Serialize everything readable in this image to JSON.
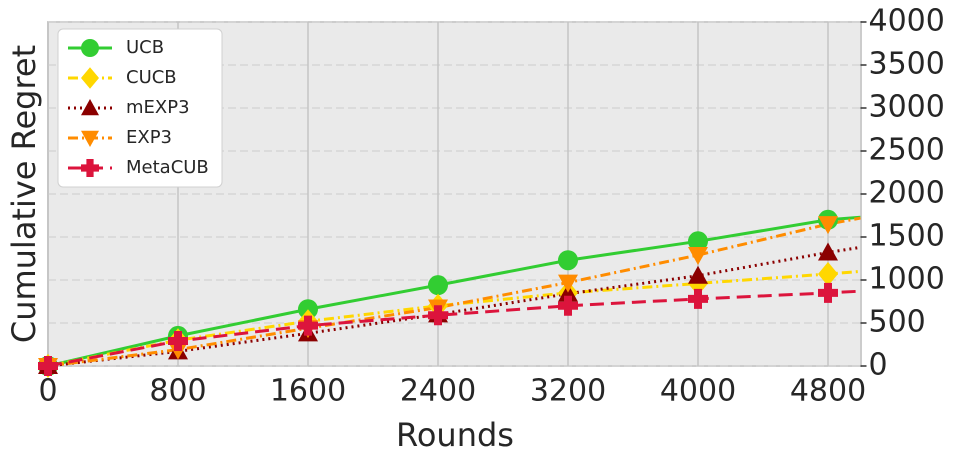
{
  "chart_data": {
    "type": "line",
    "xlabel": "Rounds",
    "ylabel": "Cumulative Regret",
    "x": [
      0,
      800,
      1600,
      2400,
      3200,
      4000,
      4800,
      5000
    ],
    "xlim": [
      0,
      5000
    ],
    "xticks": [
      0,
      800,
      1600,
      2400,
      3200,
      4000,
      4800
    ],
    "ylim": [
      0,
      4000
    ],
    "yticks": [
      0,
      500,
      1000,
      1500,
      2000,
      2500,
      3000,
      3500,
      4000
    ],
    "y_axis_side": "right",
    "grid": true,
    "legend": "upper left",
    "marker_every": 800,
    "series": [
      {
        "name": "UCB",
        "color": "#32cd32",
        "linestyle": "solid",
        "marker": "circle",
        "values": [
          0,
          350,
          660,
          940,
          1230,
          1450,
          1700,
          1730
        ]
      },
      {
        "name": "CUCB",
        "color": "#ffd700",
        "linestyle": "dashdot",
        "marker": "diamond",
        "values": [
          0,
          300,
          520,
          700,
          850,
          960,
          1070,
          1100
        ]
      },
      {
        "name": "mEXP3",
        "color": "#8b0000",
        "linestyle": "dotted",
        "marker": "triangle-up",
        "values": [
          0,
          170,
          380,
          600,
          840,
          1050,
          1320,
          1380
        ]
      },
      {
        "name": "EXP3",
        "color": "#ff8c00",
        "linestyle": "dashdot",
        "marker": "triangle-down",
        "values": [
          0,
          190,
          440,
          680,
          970,
          1290,
          1650,
          1720
        ]
      },
      {
        "name": "MetaCUB",
        "color": "#dc143c",
        "linestyle": "dashed",
        "marker": "plus",
        "values": [
          0,
          290,
          470,
          590,
          700,
          780,
          850,
          870
        ]
      }
    ]
  }
}
